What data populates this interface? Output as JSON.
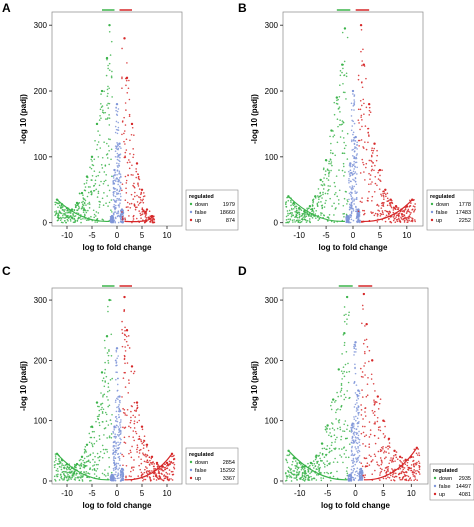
{
  "colors": {
    "down": "#3cb44b",
    "false": "#7f95d8",
    "up": "#d62728",
    "frame": "#000000"
  },
  "chart_data": [
    {
      "type": "scatter",
      "panel": "A",
      "xlabel": "log to fold change",
      "ylabel": "-log 10 (padj)",
      "xticks": [
        -10,
        -5,
        0,
        5,
        10
      ],
      "yticks": [
        0,
        100,
        200,
        300
      ],
      "xlim": [
        -13,
        13
      ],
      "ylim": [
        -5,
        320
      ],
      "grid": false,
      "legend_placement": "right",
      "legend": {
        "title": "regulated",
        "entries": [
          {
            "name": "down",
            "count": "1979"
          },
          {
            "name": "false",
            "count": "18660"
          },
          {
            "name": "up",
            "count": "874"
          }
        ]
      },
      "series": [
        {
          "name": "down",
          "x": [
            -12,
            -11,
            -10,
            -9,
            -8,
            -7,
            -6,
            -5,
            -4,
            -3,
            -2,
            -1.5
          ],
          "y": [
            35,
            28,
            22,
            20,
            30,
            45,
            70,
            100,
            150,
            200,
            250,
            300
          ]
        },
        {
          "name": "false",
          "x": [
            -1,
            -0.5,
            0,
            0.5,
            1
          ],
          "y": [
            10,
            80,
            180,
            120,
            20
          ]
        },
        {
          "name": "up",
          "x": [
            1.5,
            2,
            3,
            4,
            5,
            6,
            7
          ],
          "y": [
            280,
            220,
            150,
            90,
            50,
            20,
            10
          ]
        }
      ]
    },
    {
      "type": "scatter",
      "panel": "B",
      "xlabel": "log to fold change",
      "ylabel": "-log 10 (padj)",
      "xticks": [
        -10,
        -5,
        0,
        5,
        10
      ],
      "yticks": [
        0,
        100,
        200,
        300
      ],
      "xlim": [
        -13,
        13
      ],
      "ylim": [
        -5,
        320
      ],
      "grid": false,
      "legend_placement": "right",
      "legend": {
        "title": "regulated",
        "entries": [
          {
            "name": "down",
            "count": "1778"
          },
          {
            "name": "false",
            "count": "17483"
          },
          {
            "name": "up",
            "count": "2252"
          }
        ]
      },
      "series": [
        {
          "name": "down",
          "x": [
            -12,
            -11,
            -10,
            -9,
            -8,
            -7,
            -6,
            -5,
            -4,
            -3,
            -2,
            -1.5
          ],
          "y": [
            40,
            30,
            22,
            18,
            25,
            40,
            65,
            95,
            140,
            190,
            240,
            295
          ]
        },
        {
          "name": "false",
          "x": [
            -1,
            -0.5,
            0,
            0.5,
            1
          ],
          "y": [
            10,
            90,
            200,
            130,
            20
          ]
        },
        {
          "name": "up",
          "x": [
            1.5,
            2,
            3,
            4,
            5,
            6,
            7,
            8,
            9,
            10,
            11
          ],
          "y": [
            300,
            240,
            180,
            120,
            80,
            50,
            35,
            25,
            20,
            25,
            35
          ]
        }
      ]
    },
    {
      "type": "scatter",
      "panel": "C",
      "xlabel": "log to fold change",
      "ylabel": "-log 10 (padj)",
      "xticks": [
        -10,
        -5,
        0,
        5,
        10
      ],
      "yticks": [
        0,
        100,
        200,
        300
      ],
      "xlim": [
        -13,
        13
      ],
      "ylim": [
        -5,
        320
      ],
      "grid": false,
      "legend_placement": "right",
      "legend": {
        "title": "regulated",
        "entries": [
          {
            "name": "down",
            "count": "2854"
          },
          {
            "name": "false",
            "count": "15292"
          },
          {
            "name": "up",
            "count": "3367"
          }
        ]
      },
      "series": [
        {
          "name": "down",
          "x": [
            -12,
            -11,
            -10,
            -9,
            -8,
            -7,
            -6,
            -5,
            -4,
            -3,
            -2,
            -1.5
          ],
          "y": [
            45,
            35,
            28,
            22,
            28,
            40,
            60,
            90,
            130,
            180,
            240,
            300
          ]
        },
        {
          "name": "false",
          "x": [
            -1,
            -0.5,
            0,
            0.5,
            1
          ],
          "y": [
            10,
            90,
            220,
            140,
            20
          ]
        },
        {
          "name": "up",
          "x": [
            1.5,
            2,
            3,
            4,
            5,
            6,
            7,
            8,
            9,
            10,
            11
          ],
          "y": [
            305,
            250,
            190,
            130,
            90,
            60,
            40,
            30,
            25,
            30,
            45
          ]
        }
      ]
    },
    {
      "type": "scatter",
      "panel": "D",
      "xlabel": "log to fold change",
      "ylabel": "-log 10 (padj)",
      "xticks": [
        -10,
        -5,
        0,
        5,
        10
      ],
      "yticks": [
        0,
        100,
        200,
        300
      ],
      "xlim": [
        -13,
        13
      ],
      "ylim": [
        -5,
        320
      ],
      "grid": false,
      "legend_placement": "right",
      "legend": {
        "title": "regulated",
        "entries": [
          {
            "name": "down",
            "count": "2935"
          },
          {
            "name": "false",
            "count": "14497"
          },
          {
            "name": "up",
            "count": "4081"
          }
        ]
      },
      "series": [
        {
          "name": "down",
          "x": [
            -12,
            -11,
            -10,
            -9,
            -8,
            -7,
            -6,
            -5,
            -4,
            -3,
            -2,
            -1.5
          ],
          "y": [
            50,
            38,
            30,
            25,
            30,
            42,
            62,
            92,
            135,
            185,
            245,
            305
          ]
        },
        {
          "name": "false",
          "x": [
            -1,
            -0.5,
            0,
            0.5,
            1
          ],
          "y": [
            10,
            95,
            230,
            150,
            20
          ]
        },
        {
          "name": "up",
          "x": [
            1.5,
            2,
            3,
            4,
            5,
            6,
            7,
            8,
            9,
            10,
            11
          ],
          "y": [
            310,
            260,
            200,
            140,
            100,
            70,
            50,
            40,
            35,
            40,
            55
          ]
        }
      ]
    }
  ]
}
